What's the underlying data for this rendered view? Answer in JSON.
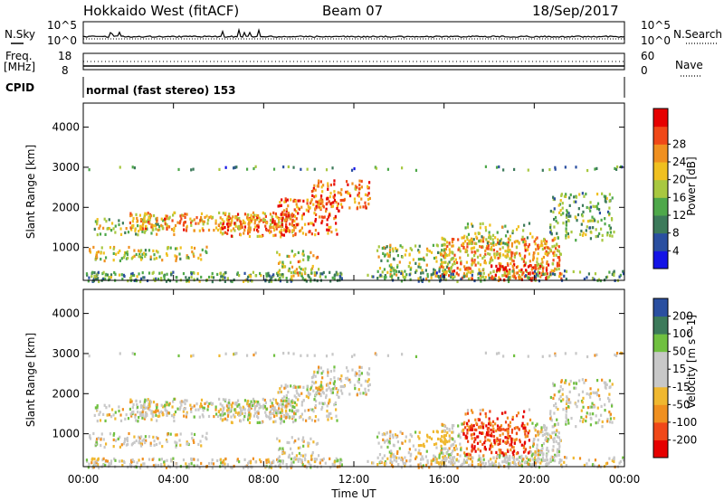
{
  "header": {
    "station": "Hokkaido West (fitACF)",
    "beam": "Beam 07",
    "date": "18/Sep/2017"
  },
  "strip": {
    "nsky_label": "N.Sky",
    "nsky_top": "10^5",
    "nsky_bottom": "10^0",
    "nsearch_label": "N.Search",
    "nsearch_top": "10^5",
    "nsearch_bottom": "10^0",
    "freq_label": "Freq.",
    "freq_unit": "[MHz]",
    "freq_top": "18",
    "freq_bottom": "8",
    "nave_label": "Nave",
    "nave_top": "60",
    "nave_bottom": "0",
    "cpid_label": "CPID",
    "cpid_value": "normal (fast stereo) 153"
  },
  "x_axis": {
    "label": "Time UT",
    "ticks": [
      "00:00",
      "04:00",
      "08:00",
      "12:00",
      "16:00",
      "20:00",
      "00:00"
    ]
  },
  "colors": {
    "power_bar": [
      "#1414e6",
      "#2a4fa0",
      "#3c7a5a",
      "#4ea84a",
      "#a8c840",
      "#f0c020",
      "#f09020",
      "#f04818",
      "#e60000"
    ],
    "velocity_bar": [
      "#e60000",
      "#f04818",
      "#f09020",
      "#f0b830",
      "#c8c8c8",
      "#c8c8c8",
      "#70c040",
      "#3c7a5a",
      "#2a4fa0",
      "#1414e6"
    ]
  },
  "chart_data": [
    {
      "type": "heatmap",
      "panel": "power",
      "ylabel": "Slant Range [km]",
      "y_ticks": [
        "1000",
        "2000",
        "3000",
        "4000"
      ],
      "y_tick_values": [
        1000,
        2000,
        3000,
        4000
      ],
      "ylim": [
        180,
        4600
      ],
      "xlim_hours": [
        0,
        24
      ],
      "colorbar_label": "Power [dB]",
      "colorbar_ticks": [
        "4",
        "8",
        "12",
        "16",
        "20",
        "24",
        "28"
      ],
      "colorbar_range": [
        0,
        30
      ]
    },
    {
      "type": "heatmap",
      "panel": "velocity",
      "ylabel": "Slant Range [km]",
      "y_ticks": [
        "1000",
        "2000",
        "3000",
        "4000"
      ],
      "y_tick_values": [
        1000,
        2000,
        3000,
        4000
      ],
      "ylim": [
        180,
        4600
      ],
      "xlim_hours": [
        0,
        24
      ],
      "colorbar_label": "Velocity [m s^-1]",
      "colorbar_ticks": [
        "-200",
        "-100",
        "-50",
        "-15",
        "15",
        "50",
        "100",
        "200"
      ]
    }
  ]
}
